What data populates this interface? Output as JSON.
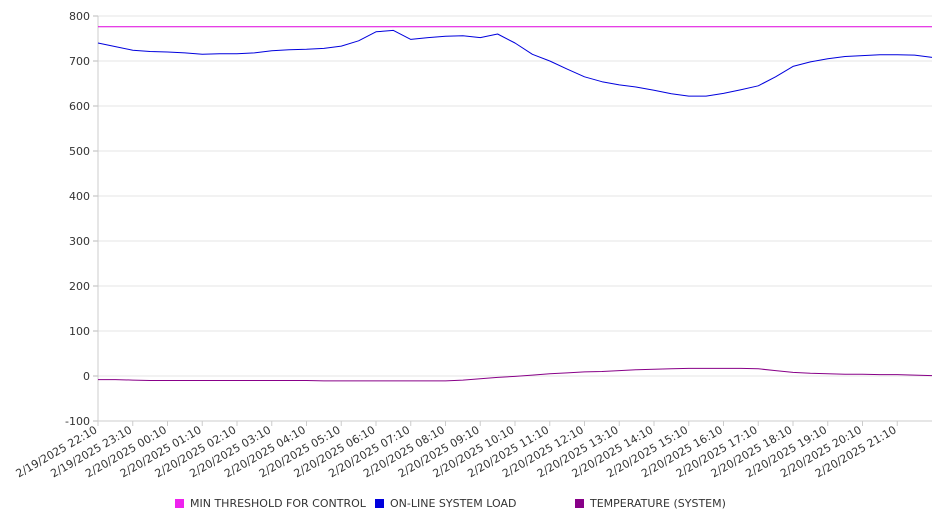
{
  "chart_data": {
    "type": "line",
    "title": "",
    "xlabel": "",
    "ylabel": "",
    "ylim": [
      -100,
      800
    ],
    "yticks": [
      -100,
      0,
      100,
      200,
      300,
      400,
      500,
      600,
      700,
      800
    ],
    "grid": "horizontal",
    "legend": "bottom",
    "x_tick_labels": [
      "2/19/2025 22:10",
      "2/19/2025 23:10",
      "2/20/2025 00:10",
      "2/20/2025 01:10",
      "2/20/2025 02:10",
      "2/20/2025 03:10",
      "2/20/2025 04:10",
      "2/20/2025 05:10",
      "2/20/2025 06:10",
      "2/20/2025 07:10",
      "2/20/2025 08:10",
      "2/20/2025 09:10",
      "2/20/2025 10:10",
      "2/20/2025 11:10",
      "2/20/2025 12:10",
      "2/20/2025 13:10",
      "2/20/2025 14:10",
      "2/20/2025 15:10",
      "2/20/2025 16:10",
      "2/20/2025 17:10",
      "2/20/2025 18:10",
      "2/20/2025 19:10",
      "2/20/2025 20:10",
      "2/20/2025 21:10"
    ],
    "x": [
      "2/19/2025 22:10",
      "2/19/2025 22:40",
      "2/19/2025 23:10",
      "2/19/2025 23:40",
      "2/20/2025 00:10",
      "2/20/2025 00:40",
      "2/20/2025 01:10",
      "2/20/2025 01:40",
      "2/20/2025 02:10",
      "2/20/2025 02:40",
      "2/20/2025 03:10",
      "2/20/2025 03:40",
      "2/20/2025 04:10",
      "2/20/2025 04:40",
      "2/20/2025 05:10",
      "2/20/2025 05:40",
      "2/20/2025 06:10",
      "2/20/2025 06:40",
      "2/20/2025 07:10",
      "2/20/2025 07:40",
      "2/20/2025 08:10",
      "2/20/2025 08:40",
      "2/20/2025 09:10",
      "2/20/2025 09:40",
      "2/20/2025 10:10",
      "2/20/2025 10:40",
      "2/20/2025 11:10",
      "2/20/2025 11:40",
      "2/20/2025 12:10",
      "2/20/2025 12:40",
      "2/20/2025 13:10",
      "2/20/2025 13:40",
      "2/20/2025 14:10",
      "2/20/2025 14:40",
      "2/20/2025 15:10",
      "2/20/2025 15:40",
      "2/20/2025 16:10",
      "2/20/2025 16:40",
      "2/20/2025 17:10",
      "2/20/2025 17:40",
      "2/20/2025 18:10",
      "2/20/2025 18:40",
      "2/20/2025 19:10",
      "2/20/2025 19:40",
      "2/20/2025 20:10",
      "2/20/2025 20:40",
      "2/20/2025 21:10",
      "2/20/2025 21:40",
      "2/20/2025 22:10"
    ],
    "series": [
      {
        "name": "MIN THRESHOLD FOR CONTROL",
        "color": "#dd00dd",
        "values": [
          776,
          776,
          776,
          776,
          776,
          776,
          776,
          776,
          776,
          776,
          776,
          776,
          776,
          776,
          776,
          776,
          776,
          776,
          776,
          776,
          776,
          776,
          776,
          776,
          776,
          776,
          776,
          776,
          776,
          776,
          776,
          776,
          776,
          776,
          776,
          776,
          776,
          776,
          776,
          776,
          776,
          776,
          776,
          776,
          776,
          776,
          776,
          776,
          776
        ]
      },
      {
        "name": "ON-LINE SYSTEM LOAD",
        "color": "#0000dd",
        "values": [
          740,
          732,
          724,
          721,
          720,
          718,
          715,
          716,
          716,
          718,
          723,
          725,
          726,
          728,
          733,
          745,
          765,
          768,
          748,
          752,
          755,
          756,
          752,
          760,
          740,
          715,
          700,
          682,
          665,
          654,
          647,
          642,
          635,
          627,
          622,
          622,
          628,
          636,
          645,
          665,
          688,
          698,
          705,
          710,
          712,
          714,
          714,
          713,
          708
        ]
      },
      {
        "name": "TEMPERATURE (SYSTEM)",
        "color": "#880088",
        "values": [
          -8,
          -8,
          -9,
          -10,
          -10,
          -10,
          -10,
          -10,
          -10,
          -10,
          -10,
          -10,
          -10,
          -11,
          -11,
          -11,
          -11,
          -11,
          -11,
          -11,
          -11,
          -9,
          -6,
          -3,
          -1,
          2,
          5,
          7,
          9,
          10,
          12,
          14,
          15,
          16,
          17,
          17,
          17,
          17,
          16,
          12,
          8,
          6,
          5,
          4,
          4,
          3,
          3,
          2,
          1
        ]
      }
    ]
  },
  "legend": {
    "items": [
      {
        "label": "MIN THRESHOLD FOR CONTROL",
        "color": "#ee22ee"
      },
      {
        "label": "ON-LINE SYSTEM LOAD",
        "color": "#0000dd"
      },
      {
        "label": "TEMPERATURE (SYSTEM)",
        "color": "#880088"
      }
    ]
  }
}
